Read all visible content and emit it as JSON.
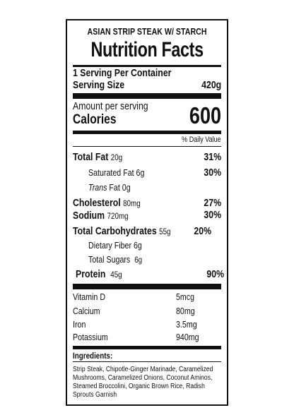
{
  "product_name": "ASIAN STRIP STEAK W/ STARCH",
  "title": "Nutrition Facts",
  "servings_per_container": "1 Serving Per Container",
  "serving_size_label": "Serving Size",
  "serving_size_value": "420g",
  "amount_per_serving": "Amount per serving",
  "calories_label": "Calories",
  "calories_value": "600",
  "daily_value_header": "% Daily Value",
  "nutrients": {
    "total_fat": {
      "label": "Total Fat",
      "amount": "20g",
      "dv": "31%"
    },
    "saturated_fat": {
      "label": "Saturated Fat 6g",
      "dv": "30%"
    },
    "trans_fat": {
      "label_italic": "Trans",
      "label_rest": " Fat 0g"
    },
    "cholesterol": {
      "label": "Cholesterol",
      "amount": "80mg",
      "dv": "27%"
    },
    "sodium": {
      "label": "Sodium",
      "amount": "720mg",
      "dv": "30%"
    },
    "total_carbohydrates": {
      "label": "Total Carbohydrates",
      "amount": "55g",
      "dv": "20%"
    },
    "dietary_fiber": {
      "label": "Dietary Fiber 6g"
    },
    "total_sugars": {
      "label": "Total Sugars",
      "amount": "6g"
    },
    "protein": {
      "label": "Protein",
      "amount": "45g",
      "dv": "90%"
    }
  },
  "vitamins": [
    {
      "name": "Vitamin D",
      "value": "5mcg"
    },
    {
      "name": "Calcium",
      "value": "80mg"
    },
    {
      "name": "Iron",
      "value": "3.5mg"
    },
    {
      "name": "Potassium",
      "value": "940mg"
    }
  ],
  "ingredients_label": "Ingredients:",
  "ingredients_text": "Strip Steak, Chipotle-Ginger Marinade, Caramelized Mushrooms, Caramelized Onions, Coconut Aminos, Steamed Broccolini, Organic Brown Rice, Radish Sprouts Garnish"
}
